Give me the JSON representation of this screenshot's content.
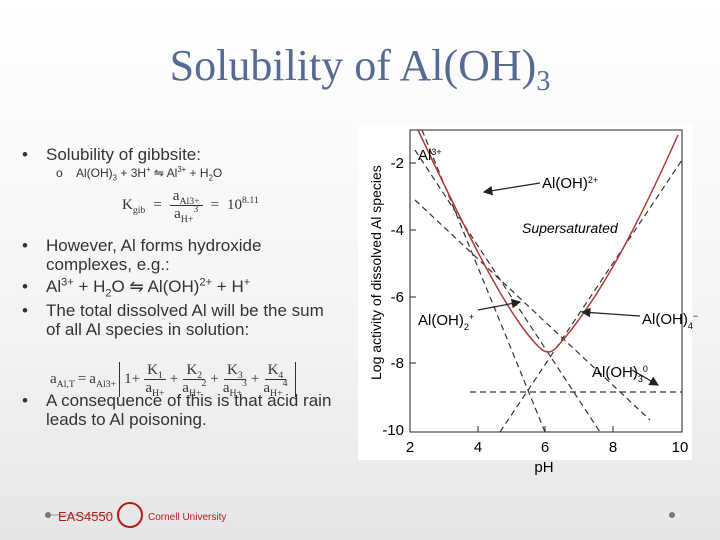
{
  "title": {
    "runs": [
      {
        "t": "Solubility of Al(OH)"
      },
      {
        "sub": "3"
      }
    ]
  },
  "bullets": [
    {
      "runs": [
        {
          "t": "Solubility of gibbsite:"
        }
      ]
    },
    {
      "runs": [
        {
          "t": "However, Al forms hydroxide complexes, e.g.:"
        }
      ]
    },
    {
      "runs": [
        {
          "t": "Al"
        },
        {
          "sup": "3+"
        },
        {
          "t": " + H"
        },
        {
          "sub": "2"
        },
        {
          "t": "O ⇋ Al(OH)"
        },
        {
          "sup": "2+"
        },
        {
          "t": " + H"
        },
        {
          "sup": "+"
        }
      ]
    },
    {
      "runs": [
        {
          "t": "The total dissolved Al will be the sum of all Al species in solution:"
        }
      ]
    },
    {
      "runs": [
        {
          "t": "A consequence of this is that acid rain leads to Al poisoning."
        }
      ]
    }
  ],
  "bullet_mark": "•",
  "sub_bullet": {
    "mark": "o",
    "runs": [
      {
        "t": "Al(OH)"
      },
      {
        "sub": "3"
      },
      {
        "t": " + 3H"
      },
      {
        "sup": "+"
      },
      {
        "t": " ⇋ Al"
      },
      {
        "sup": "3+"
      },
      {
        "t": " + H"
      },
      {
        "sub": "2"
      },
      {
        "t": "O"
      }
    ]
  },
  "equation_1": {
    "lhs": [
      {
        "t": "K"
      },
      {
        "sub": "gib"
      }
    ],
    "eq": "=",
    "num": [
      {
        "t": "a"
      },
      {
        "sub": "Al3+"
      }
    ],
    "den": [
      {
        "t": "a"
      },
      {
        "sub": "H+"
      },
      {
        "sup": "3"
      }
    ],
    "rhs": [
      {
        "t": "10"
      },
      {
        "sup": "8.11"
      }
    ]
  },
  "equation_2": {
    "lhs": [
      {
        "t": "a"
      },
      {
        "sub": "Al,T"
      }
    ],
    "eq": "=",
    "prefix": [
      {
        "t": "a"
      },
      {
        "sub": "Al3+"
      }
    ],
    "one": "1",
    "plus": "+",
    "terms": [
      {
        "num": [
          {
            "t": "K"
          },
          {
            "sub": "1"
          }
        ],
        "den": [
          {
            "t": "a"
          },
          {
            "sub": "H+"
          }
        ]
      },
      {
        "num": [
          {
            "t": "K"
          },
          {
            "sub": "2"
          }
        ],
        "den": [
          {
            "t": "a"
          },
          {
            "sub": "H+"
          },
          {
            "sup": "2"
          }
        ]
      },
      {
        "num": [
          {
            "t": "K"
          },
          {
            "sub": "3"
          }
        ],
        "den": [
          {
            "t": "a"
          },
          {
            "sub": "H+"
          },
          {
            "sup": "3"
          }
        ]
      },
      {
        "num": [
          {
            "t": "K"
          },
          {
            "sub": "4"
          }
        ],
        "den": [
          {
            "t": "a"
          },
          {
            "sub": "H+"
          },
          {
            "sup": "4"
          }
        ]
      }
    ]
  },
  "figure": {
    "y_label": "Log activity of dissolved Al species",
    "x_label": "pH",
    "y_ticks": [
      "-2",
      "-4",
      "-6",
      "-8",
      "-10"
    ],
    "x_ticks": [
      "2",
      "4",
      "6",
      "8",
      "10"
    ],
    "region_label": "Supersaturated",
    "species": [
      [
        {
          "t": "Al"
        },
        {
          "sup": "3+"
        }
      ],
      [
        {
          "t": "Al(OH)"
        },
        {
          "sup": "2+"
        }
      ],
      [
        {
          "t": "Al(OH)"
        },
        {
          "sub": "2"
        },
        {
          "sup": "+"
        }
      ],
      [
        {
          "t": "Al(OH)"
        },
        {
          "sub": "4"
        },
        {
          "sup": "−"
        }
      ],
      [
        {
          "t": "Al(OH)"
        },
        {
          "sub": "3"
        },
        {
          "sup": "0"
        }
      ]
    ]
  },
  "footer": {
    "course": "EAS4550",
    "university": "Cornell University"
  }
}
